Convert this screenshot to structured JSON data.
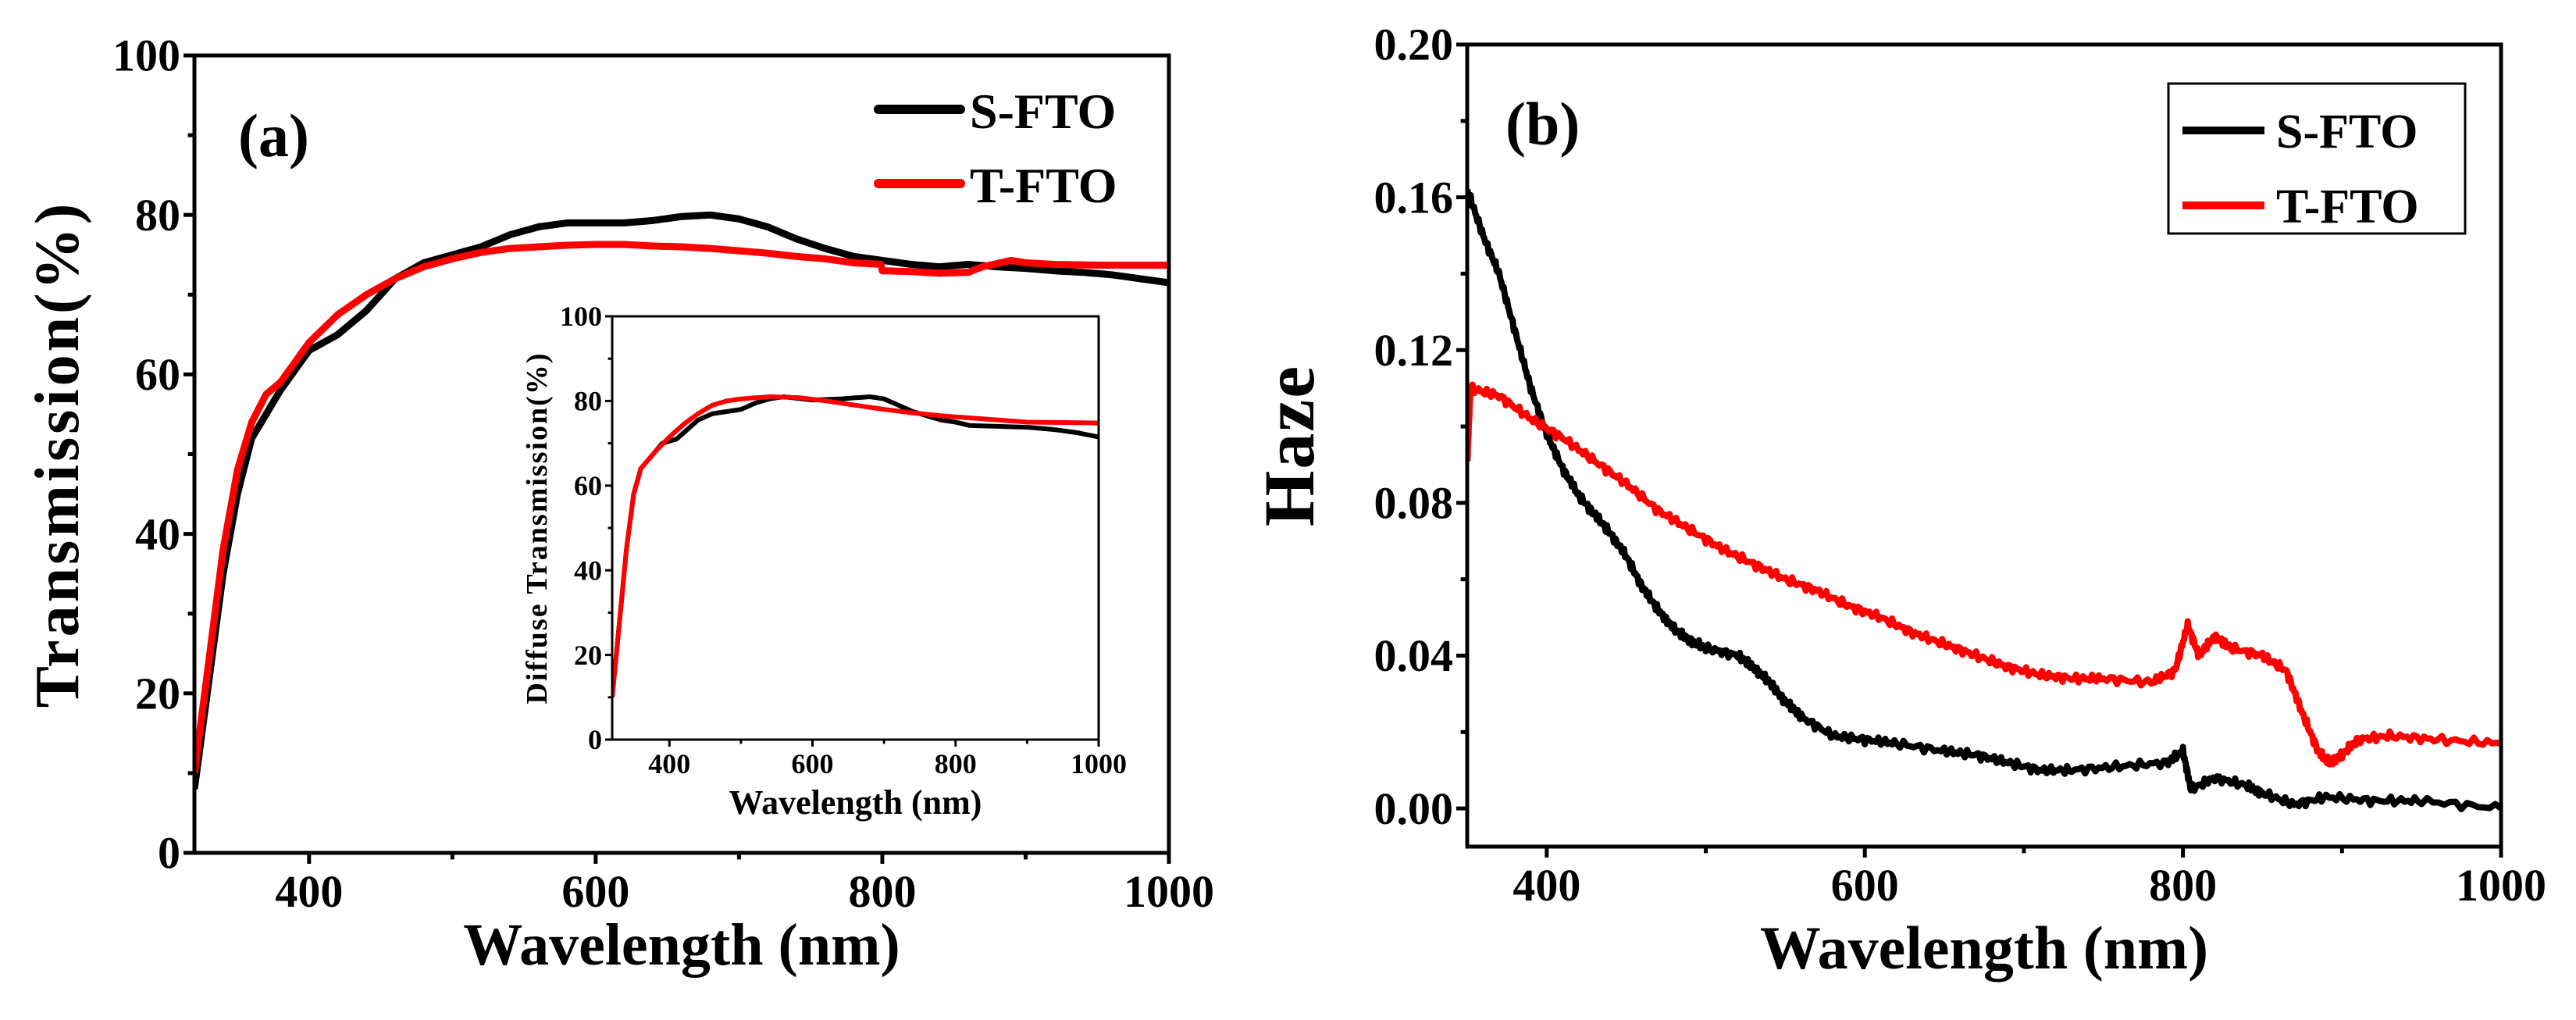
{
  "chart_data": [
    {
      "type": "line",
      "panel_label": "(a)",
      "xlabel": "Wavelength (nm)",
      "ylabel": "Transmission(%)",
      "xlim": [
        320,
        1000
      ],
      "ylim": [
        0,
        100
      ],
      "xticks": [
        400,
        600,
        800,
        1000
      ],
      "xminor": [
        500,
        700,
        900
      ],
      "yticks": [
        0,
        20,
        40,
        60,
        80,
        100
      ],
      "yminor": [
        10,
        30,
        50,
        70,
        90
      ],
      "legend": {
        "placement": "top-right",
        "boxed": false
      },
      "series": [
        {
          "name": "S-FTO",
          "color": "#000000",
          "x": [
            320,
            340,
            350,
            360,
            380,
            400,
            420,
            440,
            460,
            480,
            500,
            520,
            540,
            560,
            580,
            600,
            620,
            640,
            660,
            680,
            700,
            720,
            740,
            760,
            780,
            800,
            820,
            840,
            860,
            880,
            900,
            920,
            940,
            960,
            980,
            1000
          ],
          "y": [
            8,
            35,
            45,
            52,
            58,
            63,
            65,
            68,
            72,
            74,
            75,
            76,
            77.5,
            78.5,
            79,
            79,
            79,
            79.3,
            79.8,
            80,
            79.5,
            78.5,
            77,
            75.8,
            74.8,
            74.3,
            73.8,
            73.5,
            73.8,
            73.5,
            73.3,
            73,
            72.8,
            72.5,
            72,
            71.5
          ]
        },
        {
          "name": "T-FTO",
          "color": "#ff0000",
          "x": [
            320,
            340,
            350,
            360,
            370,
            380,
            400,
            420,
            440,
            460,
            480,
            500,
            520,
            540,
            560,
            580,
            600,
            620,
            640,
            660,
            680,
            700,
            720,
            740,
            760,
            780,
            799,
            800,
            820,
            840,
            860,
            870,
            890,
            900,
            920,
            950,
            1000
          ],
          "y": [
            10,
            38,
            48,
            54,
            57.5,
            59,
            64,
            67.5,
            70,
            72,
            73.5,
            74.5,
            75.3,
            75.8,
            76,
            76.2,
            76.3,
            76.3,
            76.1,
            76,
            75.8,
            75.5,
            75.2,
            74.8,
            74.5,
            74,
            73.8,
            73,
            72.9,
            72.7,
            72.8,
            73.5,
            74.3,
            74,
            73.8,
            73.7,
            73.7
          ]
        }
      ],
      "inset": {
        "type": "line",
        "xlabel": "Wavelength (nm)",
        "ylabel": "Diffuse Transmission(%)",
        "xlim": [
          320,
          1000
        ],
        "ylim": [
          0,
          100
        ],
        "xticks": [
          400,
          600,
          800,
          1000
        ],
        "xminor": [
          500,
          700,
          900
        ],
        "yticks": [
          0,
          20,
          40,
          60,
          80,
          100
        ],
        "yminor": [
          10,
          30,
          50,
          70,
          90
        ],
        "series": [
          {
            "name": "S-FTO",
            "color": "#000000",
            "x": [
              320,
              340,
              350,
              360,
              380,
              390,
              410,
              440,
              460,
              480,
              500,
              520,
              540,
              560,
              600,
              640,
              680,
              700,
              720,
              740,
              760,
              780,
              800,
              820,
              860,
              900,
              940,
              970,
              1000
            ],
            "y": [
              10,
              45,
              58,
              64,
              68,
              70,
              71,
              75.5,
              77,
              77.5,
              78,
              79.5,
              80.5,
              81,
              80.2,
              80.5,
              81,
              80.5,
              79,
              77.5,
              76.5,
              75.5,
              75,
              74.2,
              74,
              73.8,
              73.2,
              72.5,
              71.5
            ]
          },
          {
            "name": "T-FTO",
            "color": "#ff0000",
            "x": [
              320,
              340,
              350,
              360,
              380,
              400,
              420,
              440,
              460,
              480,
              500,
              540,
              580,
              620,
              660,
              700,
              740,
              780,
              820,
              860,
              900,
              1000
            ],
            "y": [
              10,
              45,
              58,
              64,
              68,
              71.5,
              74.5,
              77,
              79,
              80,
              80.5,
              81,
              80.8,
              80,
              79,
              78,
              77.2,
              76.5,
              76,
              75.5,
              75,
              74.8
            ]
          }
        ]
      }
    },
    {
      "type": "line",
      "panel_label": "(b)",
      "xlabel": "Wavelength (nm)",
      "ylabel": "Haze",
      "xlim": [
        350,
        1000
      ],
      "ylim": [
        -0.01,
        0.2
      ],
      "xticks": [
        400,
        600,
        800,
        1000
      ],
      "xminor": [
        500,
        700,
        900
      ],
      "yticks": [
        "0.00",
        "0.04",
        "0.08",
        "0.12",
        "0.16",
        "0.20"
      ],
      "yminor": [
        0.02,
        0.06,
        0.1,
        0.14,
        0.18
      ],
      "legend": {
        "placement": "top-right",
        "boxed": true
      },
      "series": [
        {
          "name": "S-FTO",
          "color": "#000000",
          "x": [
            350,
            360,
            370,
            380,
            390,
            400,
            410,
            420,
            430,
            440,
            450,
            460,
            470,
            480,
            490,
            500,
            520,
            530,
            540,
            550,
            560,
            580,
            600,
            620,
            650,
            670,
            690,
            710,
            730,
            760,
            790,
            800,
            805,
            820,
            840,
            850,
            870,
            890,
            920,
            950,
            1000
          ],
          "y": [
            0.162,
            0.15,
            0.14,
            0.125,
            0.11,
            0.098,
            0.089,
            0.082,
            0.077,
            0.072,
            0.066,
            0.058,
            0.052,
            0.047,
            0.044,
            0.042,
            0.04,
            0.037,
            0.033,
            0.028,
            0.024,
            0.019,
            0.018,
            0.017,
            0.015,
            0.014,
            0.012,
            0.01,
            0.01,
            0.011,
            0.012,
            0.015,
            0.005,
            0.008,
            0.006,
            0.004,
            0.001,
            0.003,
            0.002,
            0.002,
            0.0
          ]
        },
        {
          "name": "T-FTO",
          "color": "#ff0000",
          "x": [
            350,
            352,
            370,
            390,
            410,
            430,
            450,
            470,
            490,
            510,
            530,
            550,
            570,
            590,
            610,
            630,
            650,
            670,
            690,
            710,
            730,
            750,
            780,
            795,
            803,
            810,
            820,
            830,
            850,
            865,
            875,
            885,
            892,
            900,
            910,
            930,
            960,
            1000
          ],
          "y": [
            0.09,
            0.11,
            0.108,
            0.102,
            0.097,
            0.091,
            0.085,
            0.078,
            0.073,
            0.068,
            0.064,
            0.06,
            0.057,
            0.053,
            0.05,
            0.046,
            0.043,
            0.04,
            0.037,
            0.035,
            0.034,
            0.034,
            0.033,
            0.036,
            0.048,
            0.04,
            0.045,
            0.042,
            0.04,
            0.036,
            0.025,
            0.015,
            0.012,
            0.014,
            0.018,
            0.019,
            0.018,
            0.017
          ]
        }
      ]
    }
  ]
}
